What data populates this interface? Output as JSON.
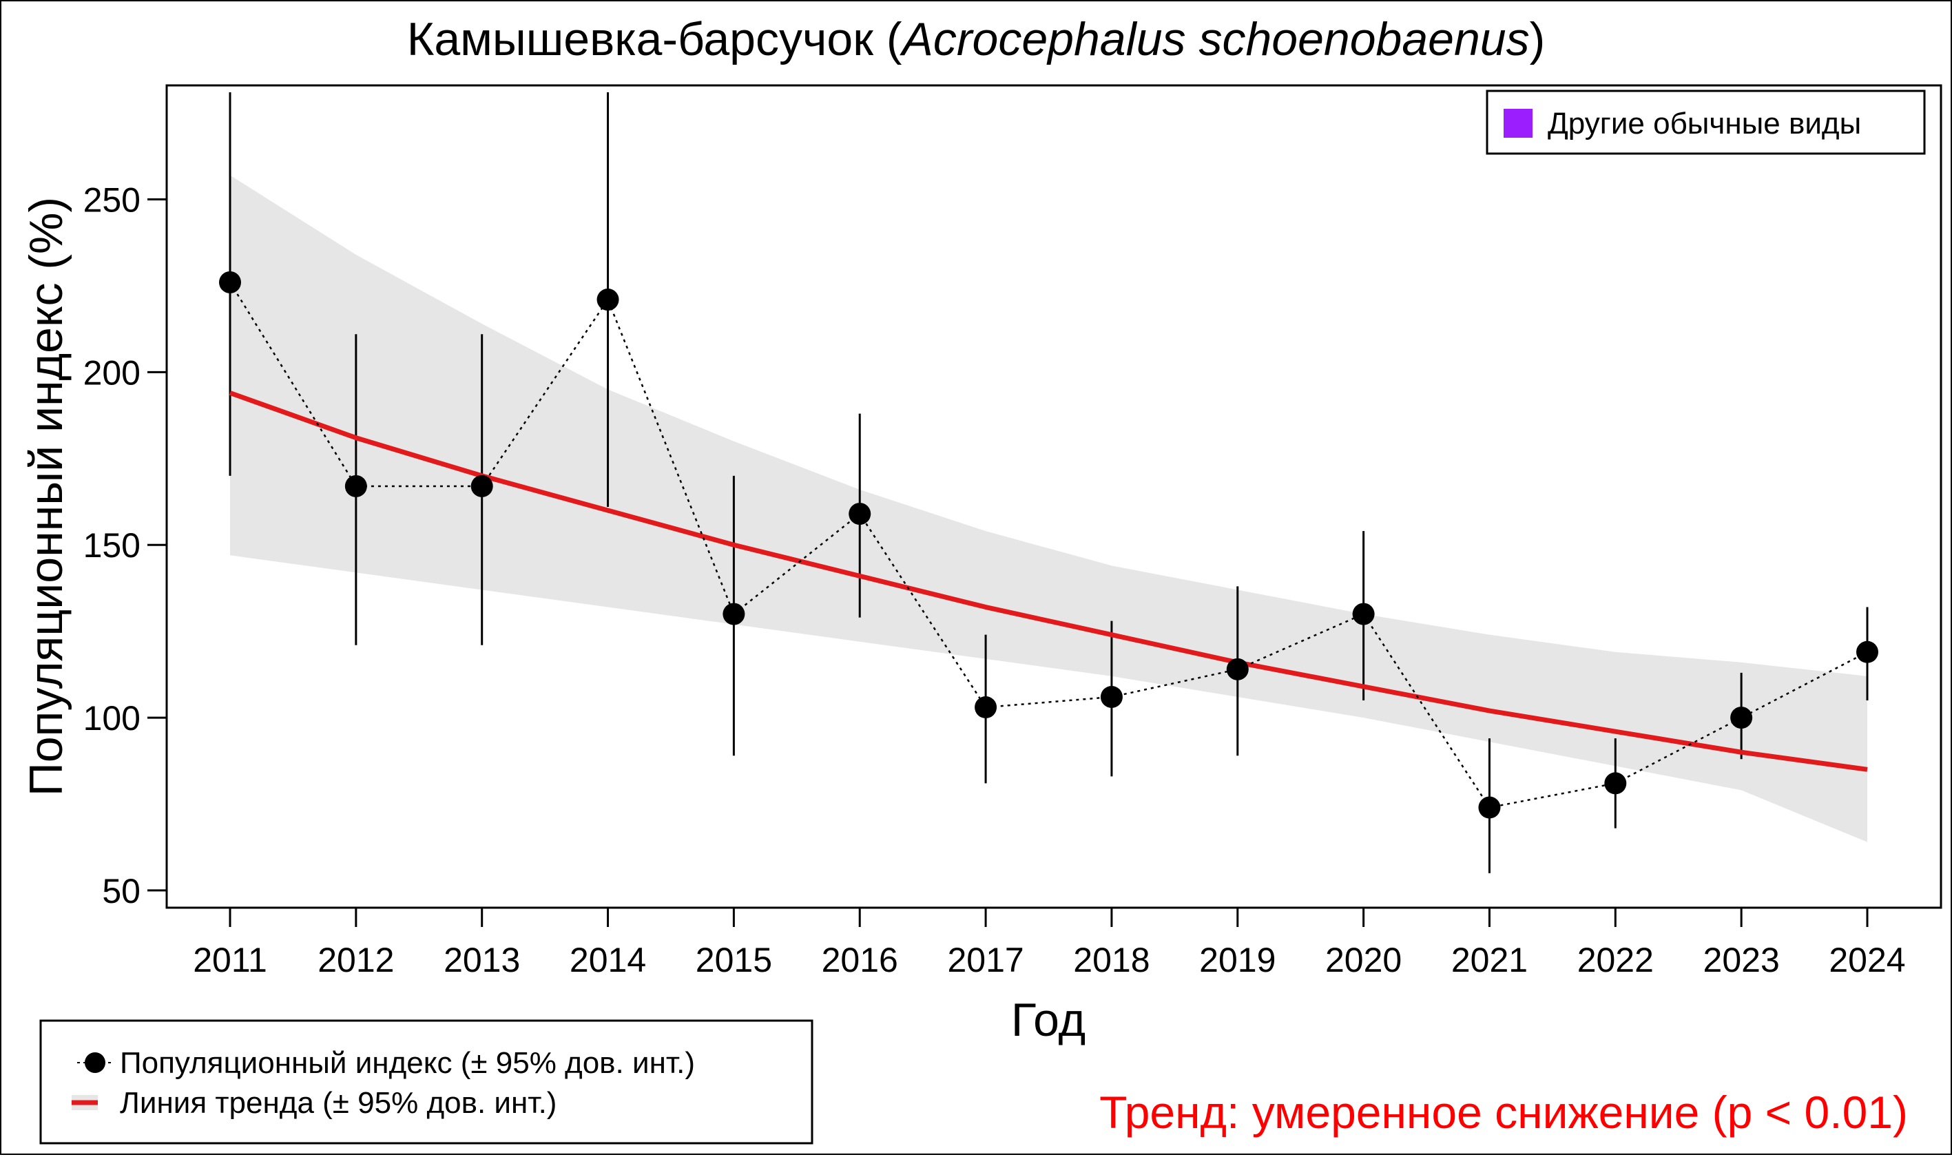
{
  "chart_data": {
    "type": "line",
    "title_common": "Камышевка-барсучок (",
    "title_latin": "Acrocephalus schoenobaenus",
    "title_close": ")",
    "xlabel": "Год",
    "ylabel": "Популяционный индекс (%)",
    "x": [
      2011,
      2012,
      2013,
      2014,
      2015,
      2016,
      2017,
      2018,
      2019,
      2020,
      2021,
      2022,
      2023,
      2024
    ],
    "ylim": [
      45,
      283
    ],
    "yticks": [
      50,
      100,
      150,
      200,
      250
    ],
    "series": [
      {
        "name": "Популяционный индекс (± 95% дов. инт.)",
        "values": [
          226,
          167,
          167,
          221,
          130,
          159,
          103,
          106,
          114,
          130,
          74,
          81,
          100,
          119
        ],
        "lower": [
          170,
          121,
          121,
          161,
          89,
          129,
          81,
          83,
          89,
          105,
          55,
          68,
          88,
          105
        ],
        "upper": [
          281,
          211,
          211,
          281,
          170,
          188,
          124,
          128,
          138,
          154,
          94,
          94,
          113,
          132
        ]
      },
      {
        "name": "Линия тренда (± 95% дов. инт.)",
        "values": [
          194,
          181,
          170,
          160,
          150,
          141,
          132,
          124,
          116,
          109,
          102,
          96,
          90,
          85
        ],
        "lower": [
          147,
          142,
          137,
          132,
          127,
          122,
          117,
          112,
          106,
          100,
          93,
          86,
          79,
          64
        ],
        "upper": [
          257,
          234,
          214,
          195,
          180,
          166,
          154,
          144,
          137,
          130,
          124,
          119,
          116,
          112
        ]
      }
    ],
    "colors": {
      "points": "#000000",
      "trend": "#e31a1c",
      "band": "#e6e6e6",
      "trend_text": "#ff0000",
      "species_group": "#9b1eff"
    }
  },
  "legend_group": {
    "label": "Другие обычные виды"
  },
  "legend": {
    "index_label": "Популяционный индекс (± 95% дов. инт.)",
    "trend_label": "Линия тренда (± 95% дов. инт.)"
  },
  "trend_summary": "Тренд: умеренное снижение (p < 0.01)"
}
